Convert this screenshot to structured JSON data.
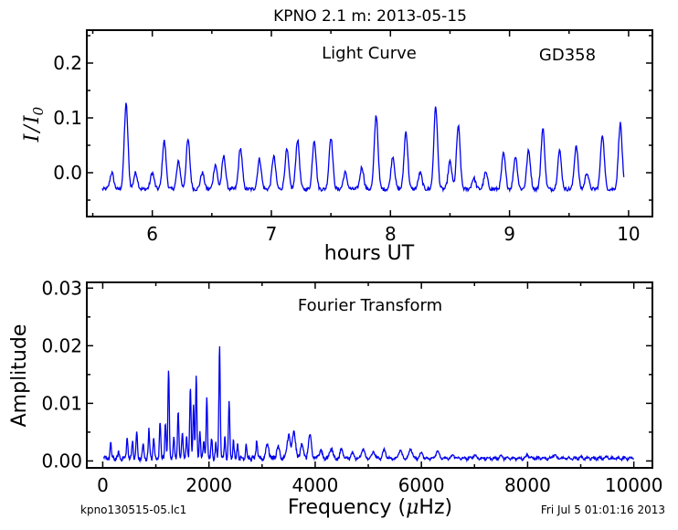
{
  "figure": {
    "title": "KPNO 2.1 m:  2013-05-15",
    "footer_left": "kpno130515-05.lc1",
    "footer_right": "Fri Jul  5 01:01:16 2013",
    "line_color": "#0000ee"
  },
  "chart_data": [
    {
      "type": "line",
      "annotation": "Light Curve",
      "object": "GD358",
      "xlabel": "hours UT",
      "ylabel_base": "I",
      "ylabel_sep": "/",
      "ylabel_sub": "0",
      "xlim": [
        5.45,
        10.2
      ],
      "ylim": [
        -0.08,
        0.26
      ],
      "xticks": [
        6,
        7,
        8,
        9,
        10
      ],
      "yticks": [
        0.0,
        0.1,
        0.2
      ],
      "ytick_labels": [
        "0.0",
        "0.1",
        "0.2"
      ],
      "x_start": 5.58,
      "x_end": 9.96,
      "baseline": -0.03,
      "peaks": [
        {
          "x": 5.66,
          "y": 0.0
        },
        {
          "x": 5.78,
          "y": 0.125
        },
        {
          "x": 5.86,
          "y": 0.0
        },
        {
          "x": 6.0,
          "y": 0.0
        },
        {
          "x": 6.1,
          "y": 0.058
        },
        {
          "x": 6.22,
          "y": 0.02
        },
        {
          "x": 6.3,
          "y": 0.06
        },
        {
          "x": 6.42,
          "y": 0.0
        },
        {
          "x": 6.53,
          "y": 0.015
        },
        {
          "x": 6.6,
          "y": 0.03
        },
        {
          "x": 6.74,
          "y": 0.045
        },
        {
          "x": 6.9,
          "y": 0.025
        },
        {
          "x": 7.02,
          "y": 0.03
        },
        {
          "x": 7.13,
          "y": 0.042
        },
        {
          "x": 7.22,
          "y": 0.06
        },
        {
          "x": 7.36,
          "y": 0.06
        },
        {
          "x": 7.5,
          "y": 0.065
        },
        {
          "x": 7.62,
          "y": 0.0
        },
        {
          "x": 7.76,
          "y": 0.01
        },
        {
          "x": 7.88,
          "y": 0.105
        },
        {
          "x": 8.02,
          "y": 0.03
        },
        {
          "x": 8.13,
          "y": 0.075
        },
        {
          "x": 8.25,
          "y": 0.0
        },
        {
          "x": 8.38,
          "y": 0.12
        },
        {
          "x": 8.5,
          "y": 0.02
        },
        {
          "x": 8.57,
          "y": 0.085
        },
        {
          "x": 8.7,
          "y": -0.01
        },
        {
          "x": 8.8,
          "y": 0.0
        },
        {
          "x": 8.95,
          "y": 0.035
        },
        {
          "x": 9.05,
          "y": 0.03
        },
        {
          "x": 9.16,
          "y": 0.04
        },
        {
          "x": 9.28,
          "y": 0.08
        },
        {
          "x": 9.42,
          "y": 0.04
        },
        {
          "x": 9.56,
          "y": 0.05
        },
        {
          "x": 9.65,
          "y": 0.0
        },
        {
          "x": 9.78,
          "y": 0.07
        },
        {
          "x": 9.93,
          "y": 0.09
        }
      ]
    },
    {
      "type": "line",
      "annotation": "Fourier Transform",
      "xlabel_text": "Frequency (",
      "xlabel_symbol": "μ",
      "xlabel_unit": "Hz)",
      "ylabel": "Amplitude",
      "xlim": [
        -300,
        10350
      ],
      "ylim": [
        -0.0012,
        0.031
      ],
      "xticks": [
        0,
        2000,
        4000,
        6000,
        8000,
        10000
      ],
      "yticks": [
        0.0,
        0.01,
        0.02,
        0.03
      ],
      "ytick_labels": [
        "0.00",
        "0.01",
        "0.02",
        "0.03"
      ],
      "x_start": 20,
      "x_end": 10000,
      "peaks": [
        {
          "x": 150,
          "y": 0.003
        },
        {
          "x": 300,
          "y": 0.0015
        },
        {
          "x": 460,
          "y": 0.004
        },
        {
          "x": 560,
          "y": 0.0035
        },
        {
          "x": 640,
          "y": 0.005
        },
        {
          "x": 760,
          "y": 0.003
        },
        {
          "x": 870,
          "y": 0.0055
        },
        {
          "x": 960,
          "y": 0.004
        },
        {
          "x": 1080,
          "y": 0.007
        },
        {
          "x": 1180,
          "y": 0.0065
        },
        {
          "x": 1240,
          "y": 0.0158
        },
        {
          "x": 1340,
          "y": 0.004
        },
        {
          "x": 1420,
          "y": 0.0085
        },
        {
          "x": 1500,
          "y": 0.005
        },
        {
          "x": 1580,
          "y": 0.004
        },
        {
          "x": 1650,
          "y": 0.013
        },
        {
          "x": 1710,
          "y": 0.0095
        },
        {
          "x": 1760,
          "y": 0.0145
        },
        {
          "x": 1830,
          "y": 0.005
        },
        {
          "x": 1900,
          "y": 0.0035
        },
        {
          "x": 1960,
          "y": 0.011
        },
        {
          "x": 2050,
          "y": 0.004
        },
        {
          "x": 2130,
          "y": 0.003
        },
        {
          "x": 2200,
          "y": 0.0197
        },
        {
          "x": 2300,
          "y": 0.004
        },
        {
          "x": 2380,
          "y": 0.0102
        },
        {
          "x": 2460,
          "y": 0.0035
        },
        {
          "x": 2540,
          "y": 0.003
        },
        {
          "x": 2700,
          "y": 0.003
        },
        {
          "x": 2900,
          "y": 0.0035
        },
        {
          "x": 3100,
          "y": 0.003
        },
        {
          "x": 3300,
          "y": 0.0025
        },
        {
          "x": 3500,
          "y": 0.0045
        },
        {
          "x": 3600,
          "y": 0.005
        },
        {
          "x": 3750,
          "y": 0.003
        },
        {
          "x": 3900,
          "y": 0.0045
        },
        {
          "x": 4100,
          "y": 0.002
        },
        {
          "x": 4300,
          "y": 0.002
        },
        {
          "x": 4500,
          "y": 0.002
        },
        {
          "x": 4700,
          "y": 0.0015
        },
        {
          "x": 4900,
          "y": 0.002
        },
        {
          "x": 5100,
          "y": 0.0015
        },
        {
          "x": 5300,
          "y": 0.002
        },
        {
          "x": 5600,
          "y": 0.0018
        },
        {
          "x": 5800,
          "y": 0.002
        },
        {
          "x": 6000,
          "y": 0.0015
        },
        {
          "x": 6300,
          "y": 0.0018
        },
        {
          "x": 6600,
          "y": 0.001
        },
        {
          "x": 7000,
          "y": 0.001
        },
        {
          "x": 7500,
          "y": 0.001
        },
        {
          "x": 8000,
          "y": 0.001
        },
        {
          "x": 8500,
          "y": 0.001
        },
        {
          "x": 9000,
          "y": 0.0008
        },
        {
          "x": 9500,
          "y": 0.0007
        }
      ]
    }
  ]
}
